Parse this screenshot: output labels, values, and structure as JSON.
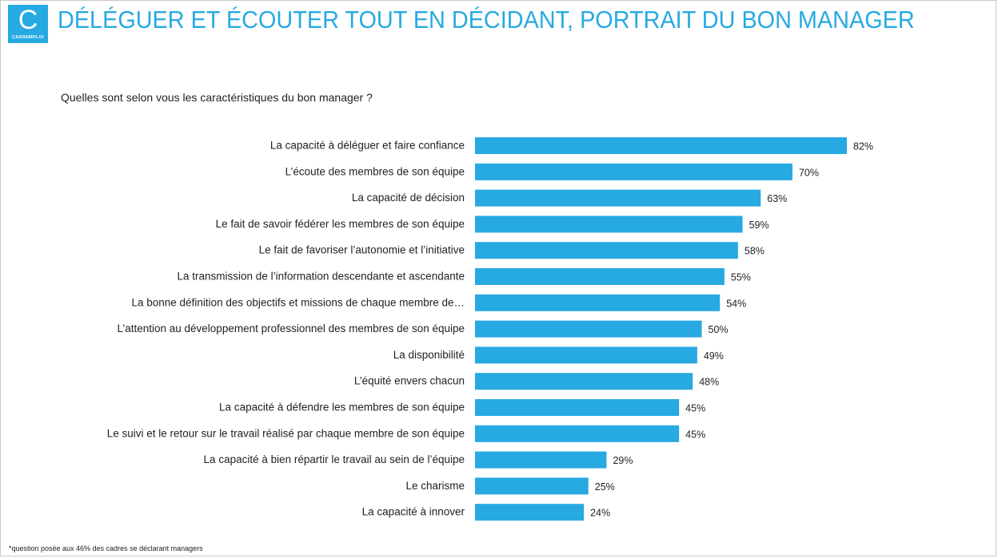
{
  "logo": {
    "letter": "C",
    "text": "CADREMPLOI"
  },
  "title": "DÉLÉGUER ET ÉCOUTER TOUT EN DÉCIDANT, PORTRAIT DU BON MANAGER",
  "question": "Quelles sont selon vous les caractéristiques du bon manager ?",
  "footnote": "*question posée aux 46% des cadres se déclarant managers",
  "colors": {
    "accent": "#27a9e1",
    "bar": "#27a9e1",
    "text": "#222222"
  },
  "chart_data": {
    "type": "bar",
    "orientation": "horizontal",
    "categories": [
      "La capacité à déléguer et faire confiance",
      "L’écoute des membres de son équipe",
      "La capacité de décision",
      "Le fait de savoir fédérer les membres de son équipe",
      "Le fait de favoriser l’autonomie et l’initiative",
      "La transmission de l’information descendante et ascendante",
      "La bonne définition des objectifs et missions de chaque membre de…",
      "L’attention au développement professionnel des membres de son équipe",
      "La disponibilité",
      "L’équité envers chacun",
      "La capacité à défendre les membres de son équipe",
      "Le suivi et le retour sur le travail réalisé par chaque membre de son équipe",
      "La capacité à bien répartir le travail au sein de l’équipe",
      "Le charisme",
      "La capacité à innover"
    ],
    "values": [
      82,
      70,
      63,
      59,
      58,
      55,
      54,
      50,
      49,
      48,
      45,
      45,
      29,
      25,
      24
    ],
    "value_labels": [
      "82%",
      "70%",
      "63%",
      "59%",
      "58%",
      "55%",
      "54%",
      "50%",
      "49%",
      "48%",
      "45%",
      "45%",
      "29%",
      "25%",
      "24%"
    ],
    "xlim": [
      0,
      100
    ],
    "grid": false,
    "legend": "none"
  }
}
